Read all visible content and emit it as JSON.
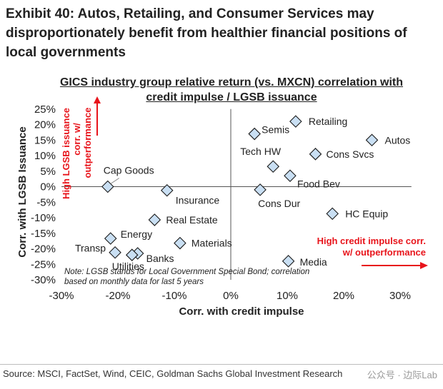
{
  "header": {
    "title": "Exhibit 40: Autos, Retailing, and Consumer Services may disproportionately benefit from healthier financial positions of local governments"
  },
  "chart_data": {
    "type": "scatter",
    "title": "GICS industry group relative return (vs. MXCN) correlation with credit impulse / LGSB issuance",
    "xlabel": "Corr. with credit impulse",
    "ylabel": "Corr. with LGSB Issuance",
    "xlim": [
      -0.3,
      0.32
    ],
    "ylim": [
      -0.3,
      0.25
    ],
    "xticks": [
      -0.3,
      -0.2,
      -0.1,
      0.0,
      0.1,
      0.2,
      0.3
    ],
    "xtick_labels": [
      "-30%",
      "-20%",
      "-10%",
      "0%",
      "10%",
      "20%",
      "30%"
    ],
    "yticks": [
      0.25,
      0.2,
      0.15,
      0.1,
      0.05,
      0.0,
      -0.05,
      -0.1,
      -0.15,
      -0.2,
      -0.25,
      -0.3
    ],
    "ytick_labels": [
      "25%",
      "20%",
      "15%",
      "10%",
      "5%",
      "0%",
      "-5%",
      "-10%",
      "-15%",
      "-20%",
      "-25%",
      "-30%"
    ],
    "grid": false,
    "points": [
      {
        "label": "Retailing",
        "x": 0.115,
        "y": 0.21
      },
      {
        "label": "Semis",
        "x": 0.042,
        "y": 0.17
      },
      {
        "label": "Autos",
        "x": 0.25,
        "y": 0.15
      },
      {
        "label": "Cons Svcs",
        "x": 0.15,
        "y": 0.105
      },
      {
        "label": "Tech HW",
        "x": 0.075,
        "y": 0.065
      },
      {
        "label": "Food Bev",
        "x": 0.105,
        "y": 0.035
      },
      {
        "label": "Cons Dur",
        "x": 0.052,
        "y": -0.01
      },
      {
        "label": "HC Equip",
        "x": 0.18,
        "y": -0.087
      },
      {
        "label": "Media",
        "x": 0.102,
        "y": -0.24
      },
      {
        "label": "Cap Goods",
        "x": -0.218,
        "y": 0.0
      },
      {
        "label": "Insurance",
        "x": -0.113,
        "y": -0.012
      },
      {
        "label": "Real Estate",
        "x": -0.135,
        "y": -0.107
      },
      {
        "label": "Energy",
        "x": -0.213,
        "y": -0.167
      },
      {
        "label": "Materials",
        "x": -0.09,
        "y": -0.182
      },
      {
        "label": "Transp",
        "x": -0.205,
        "y": -0.212
      },
      {
        "label": "Banks",
        "x": -0.165,
        "y": -0.215
      },
      {
        "label": "Utilities",
        "x": -0.175,
        "y": -0.22
      }
    ],
    "annotations": {
      "left": {
        "line1": "High LGSB issuance",
        "line2": "corr. w/",
        "line3": "outperformance",
        "color": "#e8141b"
      },
      "right": {
        "line1": "High credit impulse corr.",
        "line2": "w/ outperformance",
        "color": "#e8141b"
      },
      "note": {
        "line1": "Note: LGSB stands for Local Government Special Bond; correlation",
        "line2": "based on monthly data for last 5 years"
      }
    },
    "marker_fill": "#c9dff3",
    "marker_stroke": "#1a1a1a"
  },
  "footer": {
    "source": "Source: MSCI, FactSet, Wind, CEIC, Goldman Sachs Global Investment Research",
    "watermark": "公众号 · 边际Lab"
  }
}
